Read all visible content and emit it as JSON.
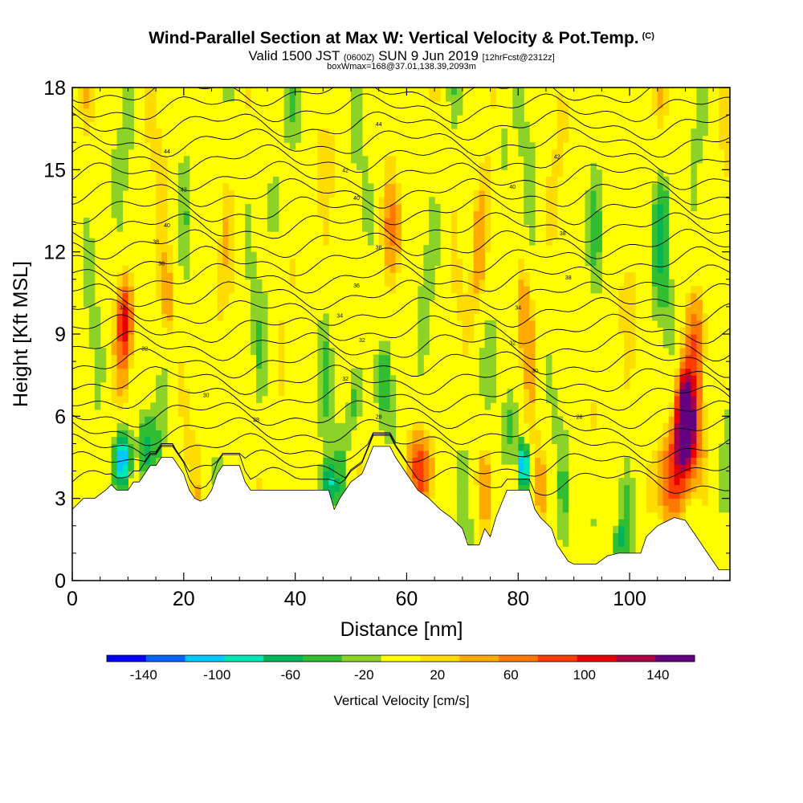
{
  "header": {
    "title": "Wind-Parallel Section at Max W: Vertical Velocity & Pot.Temp.",
    "title_corner": "(C)",
    "subtitle_valid": "Valid 1500 JST",
    "subtitle_utc": "(0600Z)",
    "subtitle_date": "SUN 9 Jun 2019",
    "subtitle_fcst": "[12hrFcst@2312z]",
    "subtitle_box": "boxWmax=168@37.01,138.39,2093m"
  },
  "chart_data": {
    "type": "heatmap",
    "xlabel": "Distance [nm]",
    "ylabel": "Height [Kft MSL]",
    "xlim": [
      0,
      118
    ],
    "ylim": [
      0,
      18
    ],
    "x_ticks": [
      0,
      20,
      40,
      60,
      80,
      100
    ],
    "y_ticks": [
      0,
      3,
      6,
      9,
      12,
      15,
      18
    ],
    "colorbar": {
      "label": "Vertical Velocity [cm/s]",
      "tick_labels": [
        "-140",
        "-100",
        "-60",
        "-20",
        "20",
        "60",
        "100",
        "140"
      ],
      "tick_values": [
        -140,
        -100,
        -60,
        -20,
        20,
        60,
        100,
        140
      ],
      "range": [
        -160,
        160
      ],
      "colors": [
        "#0000ff",
        "#0064ff",
        "#00c8ff",
        "#00e6b4",
        "#00b45a",
        "#32be32",
        "#8cd228",
        "#ffff00",
        "#ffdc00",
        "#ffaa00",
        "#ff7800",
        "#ff3c00",
        "#e60000",
        "#aa0046",
        "#640082"
      ]
    },
    "terrain_kft": [
      [
        0,
        2.6
      ],
      [
        2,
        3.0
      ],
      [
        4,
        3.0
      ],
      [
        6,
        3.3
      ],
      [
        7,
        3.5
      ],
      [
        8,
        3.3
      ],
      [
        10,
        3.3
      ],
      [
        11,
        3.6
      ],
      [
        12,
        3.6
      ],
      [
        13,
        3.9
      ],
      [
        14,
        4.2
      ],
      [
        15,
        4.2
      ],
      [
        16,
        4.5
      ],
      [
        18,
        4.5
      ],
      [
        19,
        4.2
      ],
      [
        20,
        3.9
      ],
      [
        21,
        3.3
      ],
      [
        22,
        3.0
      ],
      [
        23,
        2.9
      ],
      [
        24,
        3.0
      ],
      [
        25,
        3.3
      ],
      [
        26,
        3.9
      ],
      [
        27,
        4.2
      ],
      [
        30,
        4.2
      ],
      [
        31,
        3.6
      ],
      [
        32,
        3.3
      ],
      [
        38,
        3.3
      ],
      [
        40,
        3.3
      ],
      [
        46,
        3.3
      ],
      [
        47,
        2.6
      ],
      [
        48,
        3.0
      ],
      [
        50,
        3.6
      ],
      [
        52,
        3.9
      ],
      [
        54,
        4.9
      ],
      [
        57,
        4.9
      ],
      [
        58,
        4.5
      ],
      [
        60,
        3.9
      ],
      [
        62,
        3.3
      ],
      [
        64,
        3.0
      ],
      [
        66,
        2.6
      ],
      [
        68,
        2.3
      ],
      [
        70,
        1.9
      ],
      [
        71,
        1.3
      ],
      [
        73,
        1.3
      ],
      [
        74,
        1.9
      ],
      [
        75,
        1.6
      ],
      [
        76,
        2.3
      ],
      [
        78,
        3.3
      ],
      [
        80,
        3.3
      ],
      [
        82,
        3.3
      ],
      [
        83,
        2.6
      ],
      [
        84,
        2.3
      ],
      [
        86,
        1.9
      ],
      [
        87,
        1.3
      ],
      [
        88,
        1.0
      ],
      [
        89,
        0.7
      ],
      [
        90,
        0.6
      ],
      [
        94,
        0.6
      ],
      [
        96,
        0.9
      ],
      [
        98,
        1.0
      ],
      [
        102,
        1.0
      ],
      [
        103,
        1.6
      ],
      [
        105,
        2.0
      ],
      [
        108,
        2.3
      ],
      [
        110,
        2.2
      ],
      [
        112,
        1.6
      ],
      [
        113,
        1.3
      ],
      [
        114,
        1.0
      ],
      [
        115,
        0.7
      ],
      [
        116,
        0.4
      ],
      [
        118,
        0.4
      ]
    ],
    "theta_contour_labels": [
      {
        "x": 9,
        "y": 9.9,
        "text": "34"
      },
      {
        "x": 13,
        "y": 8.4,
        "text": "32"
      },
      {
        "x": 16,
        "y": 11.5,
        "text": "38"
      },
      {
        "x": 15,
        "y": 12.3,
        "text": "38"
      },
      {
        "x": 17,
        "y": 12.9,
        "text": "40"
      },
      {
        "x": 20,
        "y": 14.2,
        "text": "42"
      },
      {
        "x": 17,
        "y": 15.6,
        "text": "44"
      },
      {
        "x": 24,
        "y": 6.7,
        "text": "30"
      },
      {
        "x": 33,
        "y": 5.8,
        "text": "28"
      },
      {
        "x": 49,
        "y": 7.3,
        "text": "32"
      },
      {
        "x": 55,
        "y": 5.9,
        "text": "28"
      },
      {
        "x": 52,
        "y": 8.7,
        "text": "32"
      },
      {
        "x": 48,
        "y": 9.6,
        "text": "34"
      },
      {
        "x": 51,
        "y": 10.7,
        "text": "36"
      },
      {
        "x": 55,
        "y": 12.1,
        "text": "38"
      },
      {
        "x": 51,
        "y": 13.9,
        "text": "40"
      },
      {
        "x": 49,
        "y": 14.9,
        "text": "42"
      },
      {
        "x": 55,
        "y": 16.6,
        "text": "44"
      },
      {
        "x": 79,
        "y": 8.6,
        "text": "32"
      },
      {
        "x": 80,
        "y": 9.9,
        "text": "34"
      },
      {
        "x": 83,
        "y": 7.6,
        "text": "30"
      },
      {
        "x": 91,
        "y": 5.9,
        "text": "28"
      },
      {
        "x": 89,
        "y": 11.0,
        "text": "38"
      },
      {
        "x": 88,
        "y": 12.6,
        "text": "38"
      },
      {
        "x": 79,
        "y": 14.3,
        "text": "40"
      },
      {
        "x": 87,
        "y": 15.4,
        "text": "42"
      }
    ]
  }
}
